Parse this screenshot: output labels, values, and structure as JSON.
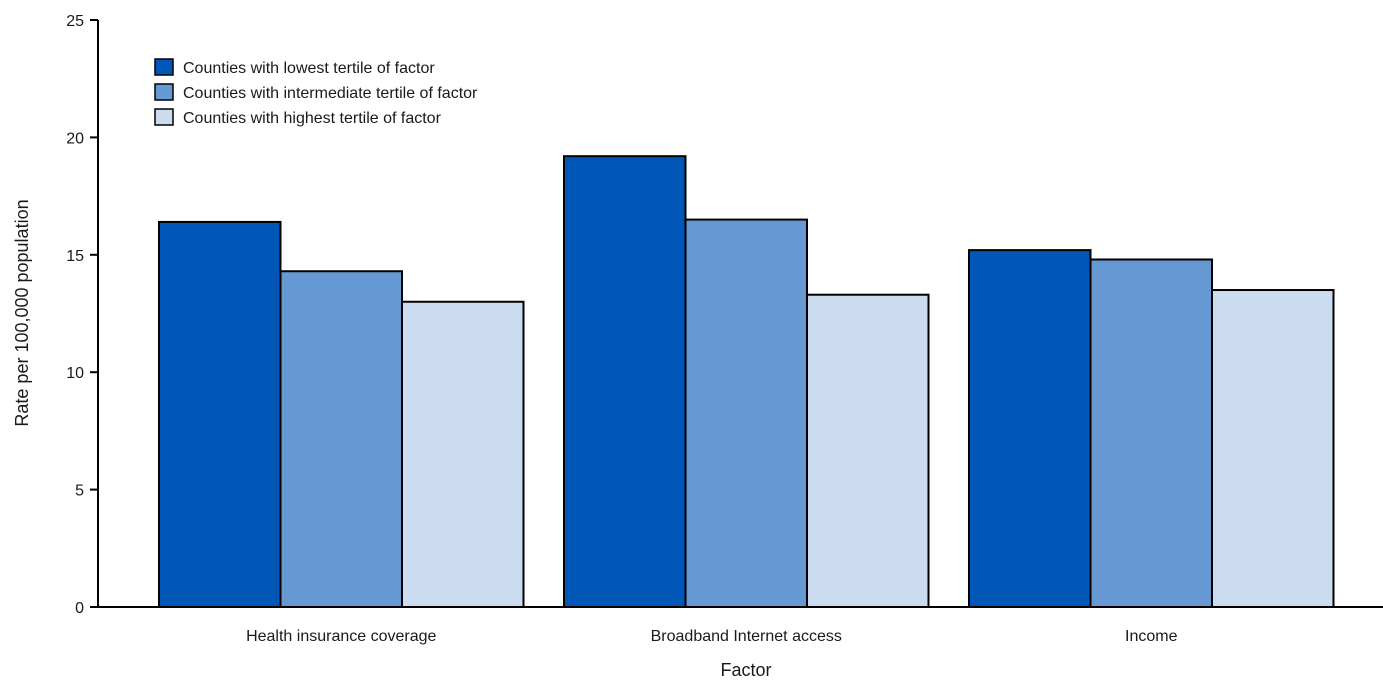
{
  "chart_data": {
    "type": "bar",
    "title": "",
    "xlabel": "Factor",
    "ylabel": "Rate per 100,000 population",
    "ylim": [
      0,
      25
    ],
    "yticks": [
      "0",
      "5",
      "10",
      "15",
      "20",
      "25"
    ],
    "categories": [
      "Health insurance coverage",
      "Broadband Internet access",
      "Income"
    ],
    "grid": false,
    "legend_position": "top-left",
    "series": [
      {
        "name": "Counties with lowest tertile of factor",
        "color": "#0057b8",
        "values": [
          16.4,
          19.2,
          15.2
        ]
      },
      {
        "name": "Counties with intermediate tertile of factor",
        "color": "#6699d3",
        "values": [
          14.3,
          16.5,
          14.8
        ]
      },
      {
        "name": "Counties with highest tertile of factor",
        "color": "#ccdcf0",
        "values": [
          13.0,
          13.3,
          13.5
        ]
      }
    ]
  }
}
